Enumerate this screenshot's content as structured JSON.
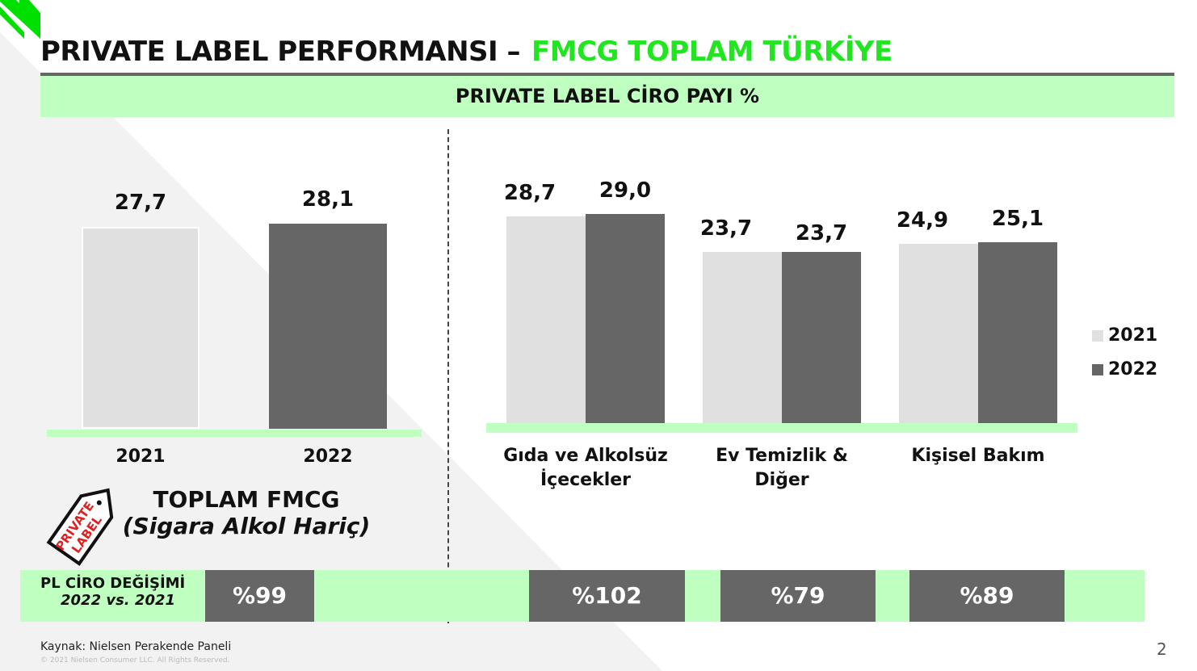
{
  "header": {
    "title": "PRIVATE LABEL PERFORMANSI –",
    "title_accent": "FMCG TOPLAM TÜRKİYE",
    "band": "PRIVATE LABEL CİRO PAYI %"
  },
  "colors": {
    "accent": "#22e522",
    "band": "#bfffbf",
    "bar_2021": "#e0e0e0",
    "bar_2022": "#666666"
  },
  "chart_data": [
    {
      "type": "bar",
      "categories": [
        "2021",
        "2022"
      ],
      "values": [
        27.7,
        28.1
      ],
      "labels": [
        "27,7",
        "28,1"
      ],
      "xlabel": "",
      "ylabel": ""
    },
    {
      "type": "bar",
      "categories": [
        "Gıda ve Alkolsüz İçecekler",
        "Ev Temizlik & Diğer",
        "Kişisel Bakım"
      ],
      "series": [
        {
          "name": "2021",
          "values": [
            28.7,
            23.7,
            24.9
          ],
          "labels": [
            "28,7",
            "23,7",
            "24,9"
          ]
        },
        {
          "name": "2022",
          "values": [
            29.0,
            23.7,
            25.1
          ],
          "labels": [
            "29,0",
            "23,7",
            "25,1"
          ]
        }
      ],
      "legend": "right"
    }
  ],
  "left_caption": {
    "line1": "TOPLAM FMCG",
    "line2": "(Sigara Alkol Hariç)"
  },
  "logo": {
    "text": "PRIVATE LABEL"
  },
  "change": {
    "label": "PL CİRO DEĞİŞİMİ",
    "sub": "2022 vs. 2021",
    "values": [
      "%99",
      "%102",
      "%79",
      "%89"
    ]
  },
  "footer": {
    "source": "Kaynak: Nielsen Perakende Paneli",
    "copyright": "© 2021 Nielsen Consumer LLC. All Rights Reserved.",
    "page": "2"
  }
}
